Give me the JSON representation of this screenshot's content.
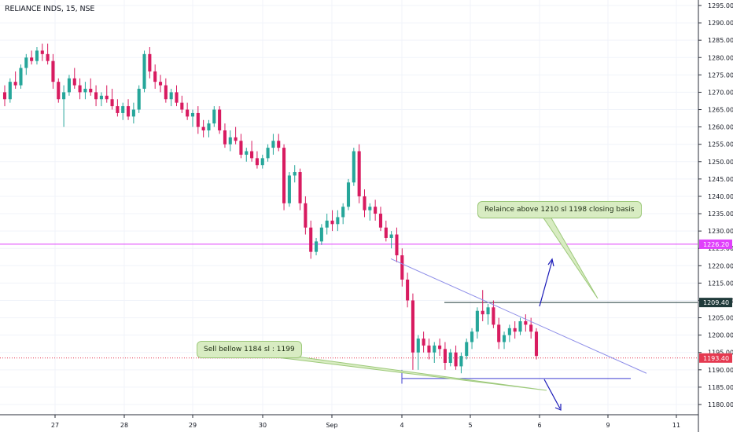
{
  "header": {
    "title": "RELIANCE INDS, 15, NSE"
  },
  "colors": {
    "up": "#26a69a",
    "down": "#d81b60",
    "magenta_line": "#e040fb",
    "dark_line": "#1f3a3a",
    "current_line": "#e53950",
    "trend_line": "#8e8ee8",
    "support_line": "#3d3dd0",
    "arrow": "#1a1ab8",
    "callout_bg": "#d8ecc2",
    "callout_border": "#9dc97a"
  },
  "chart_data": {
    "type": "candlestick",
    "title": "RELIANCE INDS, 15, NSE",
    "x_ticks": [
      "27",
      "28",
      "29",
      "30",
      "Sep",
      "4",
      "5",
      "6",
      "9",
      "11"
    ],
    "y_ticks": [
      1180,
      1185,
      1190,
      1195,
      1200,
      1205,
      1210,
      1215,
      1220,
      1225,
      1230,
      1235,
      1240,
      1245,
      1250,
      1255,
      1260,
      1265,
      1270,
      1275,
      1280,
      1285,
      1290,
      1295
    ],
    "ylim": [
      1175,
      1297
    ],
    "grid": true,
    "price_labels": [
      {
        "value": 1226.2,
        "text": "1226.20",
        "color": "#e040fb"
      },
      {
        "value": 1209.4,
        "text": "1209.40",
        "color": "#1f3a3a"
      },
      {
        "value": 1193.4,
        "text": "1193.40",
        "color": "#e53950"
      }
    ],
    "horizontal_lines": [
      {
        "value": 1226.2,
        "color": "#e040fb",
        "full": true
      },
      {
        "value": 1209.4,
        "color": "#1f3a3a",
        "full": false
      },
      {
        "value": 1193.4,
        "color": "#e53950",
        "full": true,
        "dashed": true
      }
    ],
    "annotations": [
      {
        "text": "Relaince above 1210 sl 1198 closing basis"
      },
      {
        "text": "Sell bellow 1184 sl : 1199"
      }
    ],
    "candles": [
      [
        1270,
        1272,
        1266,
        1268
      ],
      [
        1268,
        1274,
        1267,
        1273
      ],
      [
        1273,
        1276,
        1271,
        1272
      ],
      [
        1272,
        1278,
        1271,
        1277
      ],
      [
        1277,
        1281,
        1275,
        1280
      ],
      [
        1280,
        1282,
        1278,
        1279
      ],
      [
        1279,
        1283,
        1278,
        1282
      ],
      [
        1282,
        1284,
        1279,
        1281
      ],
      [
        1281,
        1284,
        1278,
        1279
      ],
      [
        1279,
        1281,
        1271,
        1273
      ],
      [
        1273,
        1274,
        1267,
        1268
      ],
      [
        1268,
        1272,
        1260,
        1270
      ],
      [
        1270,
        1275,
        1269,
        1274
      ],
      [
        1274,
        1277,
        1271,
        1272
      ],
      [
        1272,
        1274,
        1268,
        1270
      ],
      [
        1270,
        1273,
        1268,
        1271
      ],
      [
        1271,
        1274,
        1269,
        1270
      ],
      [
        1270,
        1272,
        1266,
        1268
      ],
      [
        1268,
        1270,
        1266,
        1269
      ],
      [
        1269,
        1272,
        1267,
        1268
      ],
      [
        1268,
        1271,
        1265,
        1266
      ],
      [
        1266,
        1268,
        1263,
        1264
      ],
      [
        1264,
        1267,
        1262,
        1266
      ],
      [
        1266,
        1268,
        1262,
        1263
      ],
      [
        1263,
        1267,
        1261,
        1265
      ],
      [
        1265,
        1272,
        1264,
        1271
      ],
      [
        1271,
        1282,
        1270,
        1281
      ],
      [
        1281,
        1283,
        1274,
        1276
      ],
      [
        1276,
        1278,
        1271,
        1273
      ],
      [
        1273,
        1275,
        1270,
        1272
      ],
      [
        1272,
        1274,
        1267,
        1268
      ],
      [
        1268,
        1271,
        1266,
        1270
      ],
      [
        1270,
        1272,
        1266,
        1267
      ],
      [
        1267,
        1269,
        1264,
        1265
      ],
      [
        1265,
        1267,
        1262,
        1263
      ],
      [
        1263,
        1265,
        1260,
        1264
      ],
      [
        1264,
        1266,
        1258,
        1260
      ],
      [
        1260,
        1262,
        1257,
        1259
      ],
      [
        1259,
        1262,
        1257,
        1261
      ],
      [
        1261,
        1266,
        1260,
        1265
      ],
      [
        1265,
        1266,
        1258,
        1259
      ],
      [
        1259,
        1261,
        1254,
        1255
      ],
      [
        1255,
        1259,
        1253,
        1257
      ],
      [
        1257,
        1260,
        1255,
        1256
      ],
      [
        1256,
        1258,
        1251,
        1252
      ],
      [
        1252,
        1254,
        1250,
        1253
      ],
      [
        1253,
        1256,
        1250,
        1251
      ],
      [
        1251,
        1253,
        1248,
        1249
      ],
      [
        1249,
        1252,
        1248,
        1251
      ],
      [
        1251,
        1255,
        1250,
        1254
      ],
      [
        1254,
        1258,
        1252,
        1256
      ],
      [
        1256,
        1258,
        1253,
        1254
      ],
      [
        1254,
        1255,
        1236,
        1238
      ],
      [
        1238,
        1247,
        1237,
        1246
      ],
      [
        1246,
        1249,
        1244,
        1247
      ],
      [
        1247,
        1248,
        1236,
        1238
      ],
      [
        1238,
        1240,
        1229,
        1231
      ],
      [
        1231,
        1233,
        1222,
        1224
      ],
      [
        1224,
        1228,
        1223,
        1227
      ],
      [
        1227,
        1232,
        1226,
        1231
      ],
      [
        1231,
        1235,
        1229,
        1233
      ],
      [
        1233,
        1236,
        1230,
        1232
      ],
      [
        1232,
        1236,
        1230,
        1234
      ],
      [
        1234,
        1238,
        1232,
        1237
      ],
      [
        1237,
        1245,
        1236,
        1244
      ],
      [
        1244,
        1254,
        1243,
        1253
      ],
      [
        1253,
        1255,
        1238,
        1240
      ],
      [
        1240,
        1242,
        1234,
        1236
      ],
      [
        1236,
        1238,
        1233,
        1237
      ],
      [
        1237,
        1239,
        1233,
        1235
      ],
      [
        1235,
        1237,
        1230,
        1231
      ],
      [
        1231,
        1233,
        1227,
        1228
      ],
      [
        1228,
        1230,
        1225,
        1229
      ],
      [
        1229,
        1231,
        1221,
        1223
      ],
      [
        1223,
        1225,
        1214,
        1216
      ],
      [
        1216,
        1218,
        1208,
        1210
      ],
      [
        1210,
        1212,
        1190,
        1195
      ],
      [
        1195,
        1200,
        1190,
        1199
      ],
      [
        1199,
        1201,
        1195,
        1197
      ],
      [
        1197,
        1199,
        1193,
        1195
      ],
      [
        1195,
        1198,
        1192,
        1197
      ],
      [
        1197,
        1199,
        1194,
        1196
      ],
      [
        1196,
        1198,
        1190,
        1192
      ],
      [
        1192,
        1196,
        1191,
        1195
      ],
      [
        1195,
        1197,
        1190,
        1191
      ],
      [
        1191,
        1195,
        1189,
        1194
      ],
      [
        1194,
        1199,
        1193,
        1198
      ],
      [
        1198,
        1202,
        1196,
        1201
      ],
      [
        1201,
        1208,
        1199,
        1207
      ],
      [
        1207,
        1213,
        1204,
        1206
      ],
      [
        1206,
        1209,
        1203,
        1208
      ],
      [
        1208,
        1210,
        1202,
        1203
      ],
      [
        1203,
        1205,
        1196,
        1198
      ],
      [
        1198,
        1201,
        1196,
        1200
      ],
      [
        1200,
        1203,
        1198,
        1202
      ],
      [
        1202,
        1204,
        1199,
        1201
      ],
      [
        1201,
        1205,
        1200,
        1204
      ],
      [
        1204,
        1206,
        1201,
        1203
      ],
      [
        1203,
        1205,
        1199,
        1201
      ],
      [
        1201,
        1202,
        1193,
        1194
      ]
    ]
  }
}
